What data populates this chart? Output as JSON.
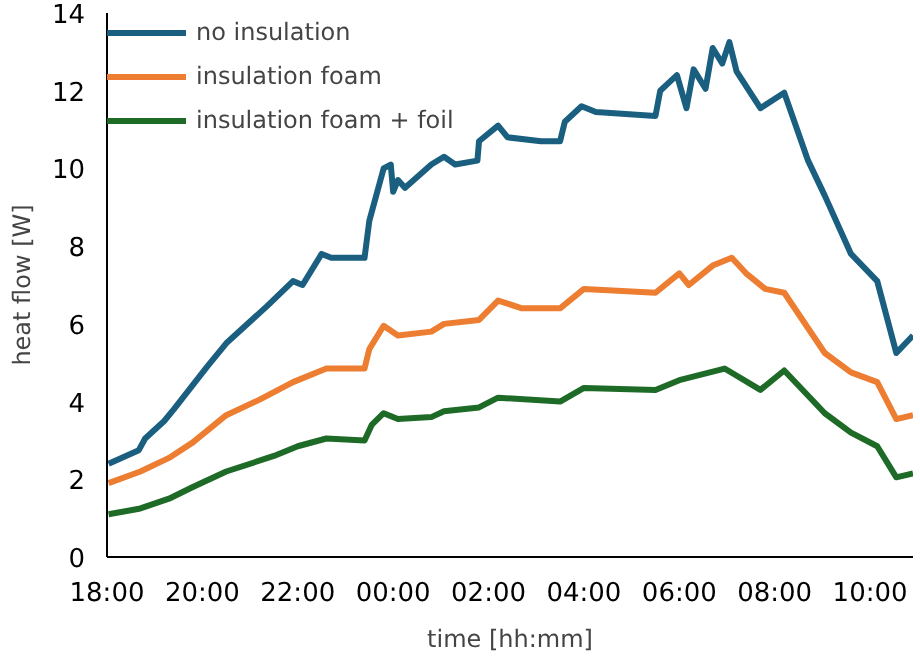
{
  "chart_data": {
    "type": "line",
    "xlabel": "time [hh:mm]",
    "ylabel": "heat flow [W]",
    "xlim": [
      "2000-01-01T18:00",
      "2000-01-02T10:54"
    ],
    "ylim": [
      0,
      14
    ],
    "xticks": [
      {
        "value": "2000-01-01T18:00",
        "label": "18:00"
      },
      {
        "value": "2000-01-01T20:00",
        "label": "20:00"
      },
      {
        "value": "2000-01-01T22:00",
        "label": "22:00"
      },
      {
        "value": "2000-01-02T00:00",
        "label": "00:00"
      },
      {
        "value": "2000-01-02T02:00",
        "label": "02:00"
      },
      {
        "value": "2000-01-02T04:00",
        "label": "04:00"
      },
      {
        "value": "2000-01-02T06:00",
        "label": "06:00"
      },
      {
        "value": "2000-01-02T08:00",
        "label": "08:00"
      },
      {
        "value": "2000-01-02T10:00",
        "label": "10:00"
      }
    ],
    "yticks": [
      0,
      2,
      4,
      6,
      8,
      10,
      12,
      14
    ],
    "grid": false,
    "legend": "top left",
    "marker": "none",
    "line_style": "solid",
    "series": [
      {
        "name": "no insulation",
        "color": "#1a5f80",
        "x": [
          "2000-01-01T18:02",
          "2000-01-01T18:40",
          "2000-01-01T18:48",
          "2000-01-01T19:12",
          "2000-01-01T19:24",
          "2000-01-01T20:06",
          "2000-01-01T20:30",
          "2000-01-01T21:21",
          "2000-01-01T21:54",
          "2000-01-01T22:06",
          "2000-01-01T22:30",
          "2000-01-01T22:42",
          "2000-01-01T23:24",
          "2000-01-01T23:30",
          "2000-01-01T23:48",
          "2000-01-01T23:57",
          "2000-01-02T00:00",
          "2000-01-02T00:06",
          "2000-01-02T00:15",
          "2000-01-02T00:48",
          "2000-01-02T01:04",
          "2000-01-02T01:18",
          "2000-01-02T01:46",
          "2000-01-02T01:48",
          "2000-01-02T02:12",
          "2000-01-02T02:24",
          "2000-01-02T03:06",
          "2000-01-02T03:30",
          "2000-01-02T03:36",
          "2000-01-02T03:57",
          "2000-01-02T04:15",
          "2000-01-02T05:30",
          "2000-01-02T05:36",
          "2000-01-02T05:57",
          "2000-01-02T06:09",
          "2000-01-02T06:18",
          "2000-01-02T06:33",
          "2000-01-02T06:42",
          "2000-01-02T06:54",
          "2000-01-02T07:03",
          "2000-01-02T07:12",
          "2000-01-02T07:42",
          "2000-01-02T08:12",
          "2000-01-02T08:42",
          "2000-01-02T09:03",
          "2000-01-02T09:36",
          "2000-01-02T10:09",
          "2000-01-02T10:33",
          "2000-01-02T10:54"
        ],
        "values": [
          2.4,
          2.75,
          3.05,
          3.5,
          3.8,
          4.9,
          5.5,
          6.45,
          7.1,
          7.0,
          7.8,
          7.7,
          7.7,
          8.65,
          10.0,
          10.1,
          9.4,
          9.7,
          9.5,
          10.1,
          10.3,
          10.1,
          10.2,
          10.7,
          11.1,
          10.8,
          10.7,
          10.7,
          11.2,
          11.6,
          11.45,
          11.35,
          12.0,
          12.4,
          11.55,
          12.55,
          12.05,
          13.1,
          12.7,
          13.25,
          12.5,
          11.55,
          11.95,
          10.2,
          9.3,
          7.8,
          7.1,
          5.25,
          5.7
        ]
      },
      {
        "name": "insulation foam",
        "color": "#ed7d31",
        "x": [
          "2000-01-01T18:02",
          "2000-01-01T18:42",
          "2000-01-01T19:18",
          "2000-01-01T19:48",
          "2000-01-01T20:30",
          "2000-01-01T21:12",
          "2000-01-01T21:54",
          "2000-01-01T22:36",
          "2000-01-01T23:24",
          "2000-01-01T23:30",
          "2000-01-01T23:48",
          "2000-01-02T00:06",
          "2000-01-02T00:48",
          "2000-01-02T01:04",
          "2000-01-02T01:48",
          "2000-01-02T02:12",
          "2000-01-02T02:42",
          "2000-01-02T03:30",
          "2000-01-02T04:00",
          "2000-01-02T05:30",
          "2000-01-02T06:00",
          "2000-01-02T06:12",
          "2000-01-02T06:42",
          "2000-01-02T07:06",
          "2000-01-02T07:24",
          "2000-01-02T07:48",
          "2000-01-02T08:12",
          "2000-01-02T09:03",
          "2000-01-02T09:36",
          "2000-01-02T10:09",
          "2000-01-02T10:33",
          "2000-01-02T10:54"
        ],
        "values": [
          1.9,
          2.2,
          2.55,
          2.95,
          3.65,
          4.05,
          4.5,
          4.85,
          4.85,
          5.35,
          5.95,
          5.7,
          5.8,
          6.0,
          6.1,
          6.6,
          6.4,
          6.4,
          6.9,
          6.8,
          7.3,
          7.0,
          7.5,
          7.7,
          7.3,
          6.9,
          6.8,
          5.25,
          4.75,
          4.5,
          3.55,
          3.65
        ]
      },
      {
        "name": "insulation foam + foil",
        "color": "#1e6b28",
        "x": [
          "2000-01-01T18:02",
          "2000-01-01T18:42",
          "2000-01-01T19:18",
          "2000-01-01T19:48",
          "2000-01-01T20:30",
          "2000-01-01T21:30",
          "2000-01-01T22:00",
          "2000-01-01T22:36",
          "2000-01-01T23:24",
          "2000-01-01T23:33",
          "2000-01-01T23:48",
          "2000-01-02T00:06",
          "2000-01-02T00:48",
          "2000-01-02T01:04",
          "2000-01-02T01:48",
          "2000-01-02T02:12",
          "2000-01-02T03:30",
          "2000-01-02T04:00",
          "2000-01-02T05:30",
          "2000-01-02T06:00",
          "2000-01-02T06:57",
          "2000-01-02T07:42",
          "2000-01-02T08:12",
          "2000-01-02T09:03",
          "2000-01-02T09:36",
          "2000-01-02T10:09",
          "2000-01-02T10:33",
          "2000-01-02T10:54"
        ],
        "values": [
          1.1,
          1.25,
          1.5,
          1.8,
          2.2,
          2.6,
          2.85,
          3.05,
          3.0,
          3.4,
          3.7,
          3.55,
          3.6,
          3.75,
          3.85,
          4.1,
          4.0,
          4.35,
          4.3,
          4.55,
          4.85,
          4.3,
          4.8,
          3.7,
          3.2,
          2.85,
          2.05,
          2.15
        ]
      }
    ]
  }
}
